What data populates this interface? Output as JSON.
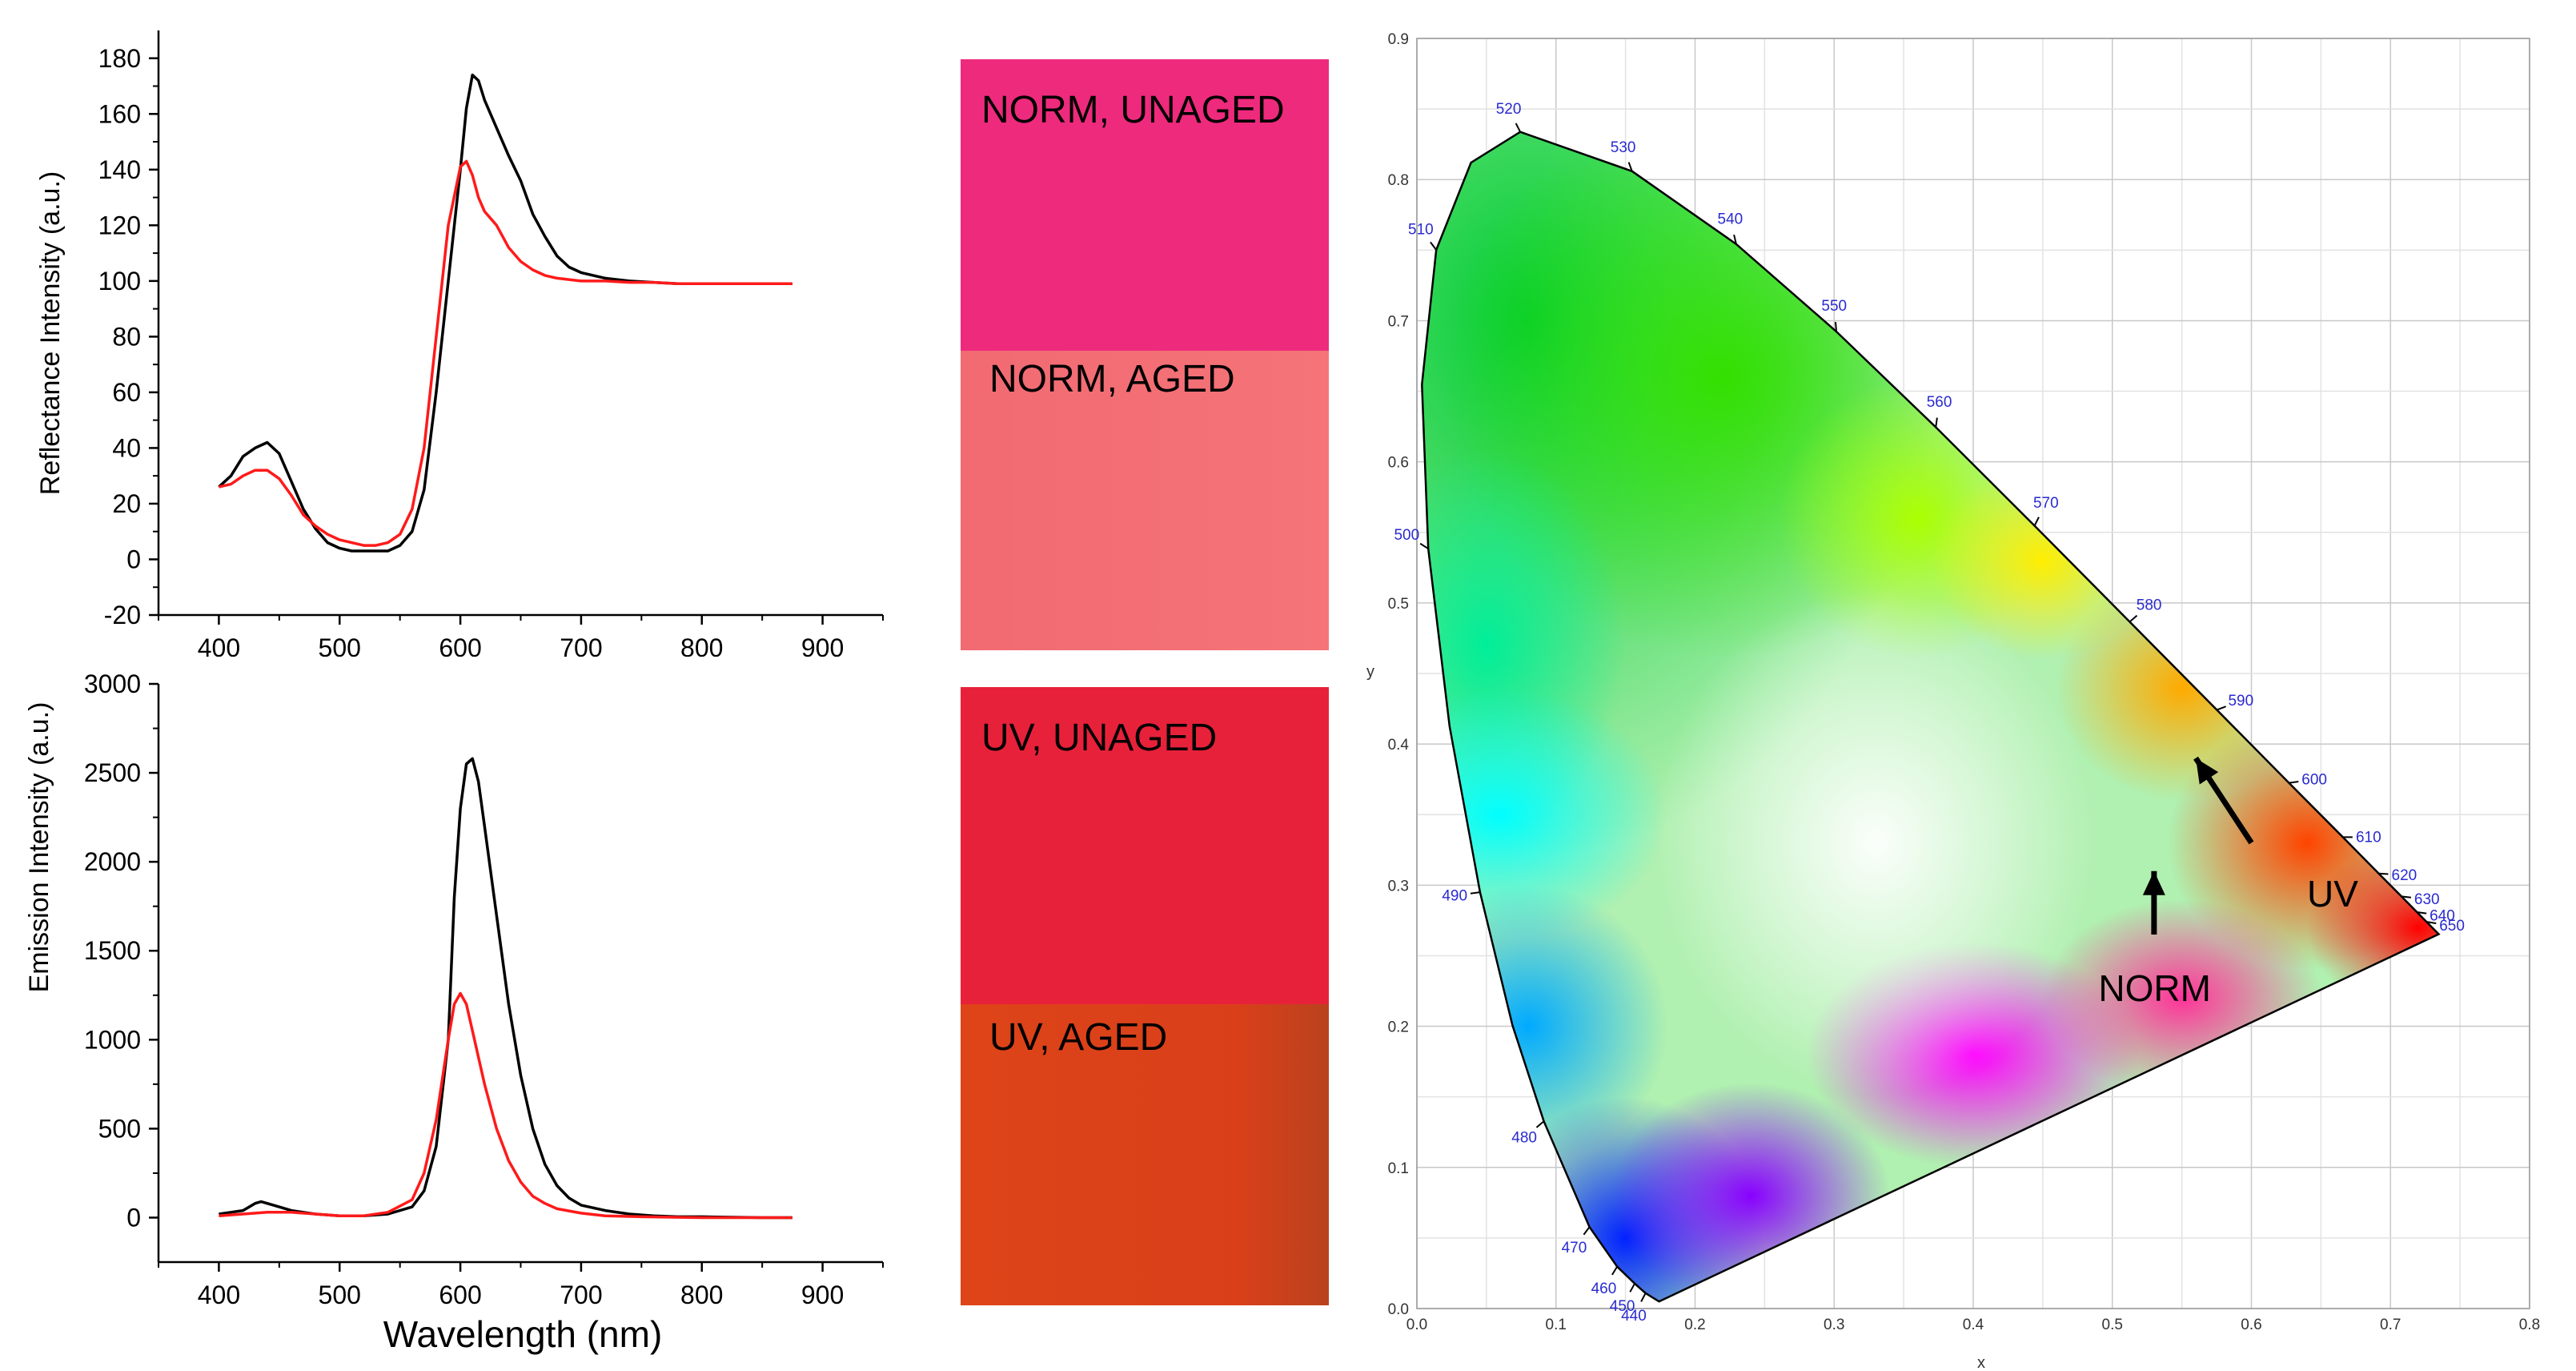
{
  "colors": {
    "black_series": "#000000",
    "red_series": "#ff1a1a",
    "norm_unaged": "#ee2a7d",
    "norm_aged": "#f26a72",
    "uv_unaged": "#e8213a",
    "uv_aged": "#d9401a",
    "cie_grid": "#c8c8c8",
    "cie_wavelength_label": "#2a2ad0"
  },
  "swatches": {
    "norm_unaged": "NORM, UNAGED",
    "norm_aged": "NORM, AGED",
    "uv_unaged": "UV, UNAGED",
    "uv_aged": "UV, AGED"
  },
  "chart_data": [
    {
      "type": "line",
      "title": "",
      "xlabel": "",
      "ylabel": "Reflectance Intensity (a.u.)",
      "xlim": [
        350,
        950
      ],
      "ylim": [
        -20,
        190
      ],
      "xticks": [
        "400",
        "500",
        "600",
        "700",
        "800",
        "900"
      ],
      "yticks": [
        "-20",
        "0",
        "20",
        "40",
        "60",
        "80",
        "100",
        "120",
        "140",
        "160",
        "180"
      ],
      "grid": false,
      "series": [
        {
          "color": "#000000",
          "x": [
            400,
            410,
            420,
            430,
            440,
            450,
            460,
            470,
            480,
            490,
            500,
            510,
            520,
            530,
            540,
            550,
            560,
            570,
            580,
            590,
            600,
            605,
            610,
            615,
            620,
            630,
            640,
            650,
            660,
            670,
            680,
            690,
            700,
            720,
            740,
            760,
            780,
            800,
            820,
            840,
            860,
            875
          ],
          "y": [
            26,
            30,
            37,
            40,
            42,
            38,
            28,
            18,
            11,
            6,
            4,
            3,
            3,
            3,
            3,
            5,
            10,
            25,
            60,
            100,
            140,
            162,
            174,
            172,
            165,
            155,
            145,
            136,
            124,
            116,
            109,
            105,
            103,
            101,
            100,
            99.5,
            99,
            99,
            99,
            99,
            99,
            99
          ]
        },
        {
          "color": "#ff1a1a",
          "x": [
            400,
            410,
            420,
            430,
            440,
            450,
            460,
            470,
            480,
            490,
            500,
            510,
            520,
            530,
            540,
            550,
            560,
            570,
            580,
            590,
            600,
            605,
            610,
            615,
            620,
            630,
            640,
            650,
            660,
            670,
            680,
            690,
            700,
            720,
            740,
            760,
            780,
            800,
            820,
            840,
            860,
            875
          ],
          "y": [
            26,
            27,
            30,
            32,
            32,
            29,
            23,
            16,
            12,
            9,
            7,
            6,
            5,
            5,
            6,
            9,
            18,
            40,
            80,
            120,
            141,
            143,
            138,
            130,
            125,
            120,
            112,
            107,
            104,
            102,
            101,
            100.5,
            100,
            100,
            99.5,
            99.5,
            99,
            99,
            99,
            99,
            99,
            99
          ]
        }
      ]
    },
    {
      "type": "line",
      "title": "",
      "xlabel": "Wavelength (nm)",
      "ylabel": "Emission Intensity (a.u.)",
      "xlim": [
        350,
        950
      ],
      "ylim": [
        -250,
        3000
      ],
      "xticks": [
        "400",
        "500",
        "600",
        "700",
        "800",
        "900"
      ],
      "yticks": [
        "0",
        "500",
        "1000",
        "1500",
        "2000",
        "2500",
        "3000"
      ],
      "grid": false,
      "series": [
        {
          "color": "#000000",
          "x": [
            400,
            410,
            420,
            430,
            435,
            440,
            450,
            460,
            470,
            480,
            490,
            500,
            520,
            540,
            560,
            570,
            580,
            590,
            595,
            600,
            605,
            610,
            615,
            620,
            630,
            640,
            650,
            660,
            670,
            680,
            690,
            700,
            720,
            740,
            760,
            780,
            800,
            850,
            875
          ],
          "y": [
            20,
            30,
            40,
            80,
            90,
            80,
            60,
            40,
            30,
            20,
            15,
            10,
            10,
            20,
            60,
            150,
            400,
            1000,
            1800,
            2300,
            2550,
            2580,
            2450,
            2200,
            1700,
            1200,
            800,
            500,
            300,
            180,
            110,
            70,
            40,
            20,
            10,
            5,
            5,
            0,
            0
          ]
        },
        {
          "color": "#ff1a1a",
          "x": [
            400,
            420,
            440,
            460,
            480,
            500,
            520,
            540,
            560,
            570,
            580,
            590,
            595,
            600,
            605,
            610,
            620,
            630,
            640,
            650,
            660,
            670,
            680,
            700,
            720,
            750,
            800,
            875
          ],
          "y": [
            10,
            20,
            30,
            30,
            20,
            10,
            10,
            30,
            100,
            250,
            550,
            1000,
            1200,
            1260,
            1200,
            1050,
            750,
            500,
            320,
            200,
            120,
            80,
            50,
            25,
            10,
            5,
            0,
            0
          ]
        }
      ]
    },
    {
      "type": "scatter",
      "title": "",
      "xlabel": "x",
      "ylabel": "y",
      "xlim": [
        0,
        0.8
      ],
      "ylim": [
        0,
        0.9
      ],
      "xticks": [
        "0.0",
        "0.1",
        "0.2",
        "0.3",
        "0.4",
        "0.5",
        "0.6",
        "0.7",
        "0.8"
      ],
      "yticks": [
        "0.0",
        "0.1",
        "0.2",
        "0.3",
        "0.4",
        "0.5",
        "0.6",
        "0.7",
        "0.8",
        "0.9"
      ],
      "grid": true,
      "locus_labels": [
        {
          "wl": "440",
          "x": 0.1644,
          "y": 0.0109
        },
        {
          "wl": "450",
          "x": 0.1566,
          "y": 0.0177
        },
        {
          "wl": "460",
          "x": 0.144,
          "y": 0.0297
        },
        {
          "wl": "470",
          "x": 0.1241,
          "y": 0.0578
        },
        {
          "wl": "480",
          "x": 0.0913,
          "y": 0.1327
        },
        {
          "wl": "490",
          "x": 0.0454,
          "y": 0.295
        },
        {
          "wl": "500",
          "x": 0.0082,
          "y": 0.5384
        },
        {
          "wl": "510",
          "x": 0.0139,
          "y": 0.7502
        },
        {
          "wl": "520",
          "x": 0.0743,
          "y": 0.8338
        },
        {
          "wl": "530",
          "x": 0.1547,
          "y": 0.8059
        },
        {
          "wl": "540",
          "x": 0.2296,
          "y": 0.7543
        },
        {
          "wl": "550",
          "x": 0.3016,
          "y": 0.6923
        },
        {
          "wl": "560",
          "x": 0.3731,
          "y": 0.6245
        },
        {
          "wl": "570",
          "x": 0.4441,
          "y": 0.5547
        },
        {
          "wl": "580",
          "x": 0.5125,
          "y": 0.4866
        },
        {
          "wl": "590",
          "x": 0.5752,
          "y": 0.4242
        },
        {
          "wl": "600",
          "x": 0.627,
          "y": 0.3725
        },
        {
          "wl": "610",
          "x": 0.6658,
          "y": 0.334
        },
        {
          "wl": "620",
          "x": 0.6915,
          "y": 0.3083
        },
        {
          "wl": "630",
          "x": 0.7079,
          "y": 0.292
        },
        {
          "wl": "640",
          "x": 0.719,
          "y": 0.2809
        },
        {
          "wl": "650",
          "x": 0.726,
          "y": 0.274
        }
      ],
      "locus_extra": [
        {
          "x": 0.1741,
          "y": 0.005
        },
        {
          "x": 0.1738,
          "y": 0.0049
        },
        {
          "x": 0.0687,
          "y": 0.2007
        },
        {
          "x": 0.0235,
          "y": 0.4127
        },
        {
          "x": 0.0036,
          "y": 0.6548
        },
        {
          "x": 0.0389,
          "y": 0.812
        },
        {
          "x": 0.7347,
          "y": 0.2653
        }
      ],
      "annotations": [
        {
          "label": "NORM",
          "x": 0.49,
          "y": 0.218,
          "arrow_from": [
            0.53,
            0.265
          ],
          "arrow_to": [
            0.53,
            0.31
          ]
        },
        {
          "label": "UV",
          "x": 0.64,
          "y": 0.285,
          "arrow_from": [
            0.6,
            0.33
          ],
          "arrow_to": [
            0.56,
            0.39
          ]
        }
      ]
    }
  ]
}
